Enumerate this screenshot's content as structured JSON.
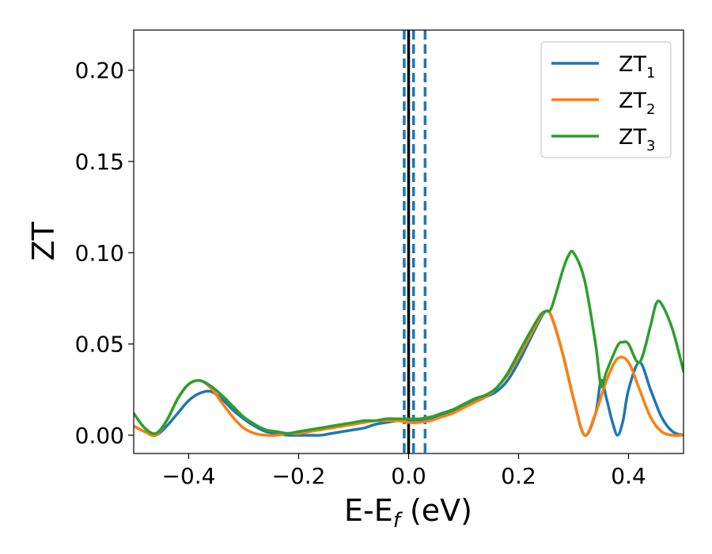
{
  "chart_data": {
    "type": "line",
    "xlabel": "E-E",
    "xlabel_sub": "f",
    "xlabel_unit": " (eV)",
    "ylabel": "ZT",
    "xlim": [
      -0.5,
      0.5
    ],
    "ylim": [
      -0.01,
      0.222
    ],
    "xticks": [
      -0.4,
      -0.2,
      0.0,
      0.2,
      0.4
    ],
    "xtick_labels": [
      "−0.4",
      "−0.2",
      "0.0",
      "0.2",
      "0.4"
    ],
    "yticks": [
      0.0,
      0.05,
      0.1,
      0.15,
      0.2
    ],
    "ytick_labels": [
      "0.00",
      "0.05",
      "0.10",
      "0.15",
      "0.20"
    ],
    "grid": false,
    "legend_position": "top-right",
    "vertical_lines": [
      {
        "x": 0.0,
        "color": "#000000",
        "style": "solid"
      },
      {
        "x": -0.008,
        "color": "#1f77b4",
        "style": "dashed"
      },
      {
        "x": 0.009,
        "color": "#1f77b4",
        "style": "dashed"
      },
      {
        "x": 0.03,
        "color": "#1f77b4",
        "style": "dashed"
      }
    ],
    "series": [
      {
        "name": "ZT",
        "name_sub": "1",
        "color": "#1f77b4",
        "x": [
          -0.5,
          -0.48,
          -0.46,
          -0.44,
          -0.42,
          -0.4,
          -0.38,
          -0.36,
          -0.34,
          -0.32,
          -0.3,
          -0.28,
          -0.26,
          -0.24,
          -0.22,
          -0.2,
          -0.18,
          -0.16,
          -0.14,
          -0.12,
          -0.1,
          -0.08,
          -0.06,
          -0.04,
          -0.02,
          0.0,
          0.02,
          0.04,
          0.06,
          0.08,
          0.1,
          0.12,
          0.14,
          0.16,
          0.18,
          0.2,
          0.22,
          0.24,
          0.25,
          0.26,
          0.28,
          0.3,
          0.32,
          0.34,
          0.35,
          0.36,
          0.37,
          0.38,
          0.39,
          0.4,
          0.42,
          0.44,
          0.46,
          0.48,
          0.5
        ],
        "values": [
          0.005,
          0.002,
          0.0,
          0.005,
          0.012,
          0.019,
          0.023,
          0.024,
          0.02,
          0.014,
          0.009,
          0.005,
          0.002,
          0.001,
          0.0,
          0.0,
          0.0,
          0.0,
          0.001,
          0.002,
          0.003,
          0.004,
          0.006,
          0.007,
          0.008,
          0.008,
          0.008,
          0.009,
          0.011,
          0.013,
          0.016,
          0.019,
          0.021,
          0.024,
          0.03,
          0.04,
          0.052,
          0.064,
          0.068,
          0.065,
          0.045,
          0.02,
          0.0,
          0.012,
          0.03,
          0.02,
          0.008,
          0.0,
          0.008,
          0.025,
          0.04,
          0.025,
          0.01,
          0.002,
          0.0
        ]
      },
      {
        "name": "ZT",
        "name_sub": "2",
        "color": "#ff7f0e",
        "x": [
          -0.5,
          -0.48,
          -0.46,
          -0.44,
          -0.42,
          -0.4,
          -0.38,
          -0.36,
          -0.34,
          -0.32,
          -0.3,
          -0.28,
          -0.26,
          -0.24,
          -0.22,
          -0.2,
          -0.18,
          -0.16,
          -0.14,
          -0.12,
          -0.1,
          -0.08,
          -0.06,
          -0.04,
          -0.02,
          0.0,
          0.02,
          0.04,
          0.06,
          0.08,
          0.1,
          0.12,
          0.14,
          0.16,
          0.18,
          0.2,
          0.22,
          0.24,
          0.25,
          0.26,
          0.28,
          0.3,
          0.32,
          0.34,
          0.36,
          0.38,
          0.4,
          0.42,
          0.44,
          0.46,
          0.48,
          0.5
        ],
        "values": [
          0.005,
          0.002,
          0.0,
          0.008,
          0.02,
          0.028,
          0.03,
          0.026,
          0.018,
          0.01,
          0.004,
          0.001,
          0.0,
          0.0,
          0.001,
          0.001,
          0.002,
          0.003,
          0.004,
          0.005,
          0.006,
          0.007,
          0.008,
          0.008,
          0.008,
          0.007,
          0.007,
          0.008,
          0.01,
          0.012,
          0.015,
          0.018,
          0.021,
          0.026,
          0.033,
          0.043,
          0.054,
          0.065,
          0.068,
          0.065,
          0.045,
          0.02,
          0.0,
          0.012,
          0.03,
          0.042,
          0.04,
          0.025,
          0.01,
          0.002,
          0.0,
          0.0
        ]
      },
      {
        "name": "ZT",
        "name_sub": "3",
        "color": "#2ca02c",
        "x": [
          -0.5,
          -0.48,
          -0.46,
          -0.44,
          -0.42,
          -0.4,
          -0.38,
          -0.36,
          -0.34,
          -0.32,
          -0.3,
          -0.28,
          -0.26,
          -0.24,
          -0.22,
          -0.2,
          -0.18,
          -0.16,
          -0.14,
          -0.12,
          -0.1,
          -0.08,
          -0.06,
          -0.04,
          -0.02,
          0.0,
          0.02,
          0.04,
          0.06,
          0.08,
          0.1,
          0.12,
          0.14,
          0.16,
          0.18,
          0.2,
          0.22,
          0.24,
          0.25,
          0.26,
          0.28,
          0.29,
          0.3,
          0.32,
          0.34,
          0.35,
          0.36,
          0.38,
          0.39,
          0.4,
          0.42,
          0.44,
          0.45,
          0.46,
          0.48,
          0.5
        ],
        "values": [
          0.012,
          0.004,
          0.001,
          0.008,
          0.02,
          0.028,
          0.03,
          0.027,
          0.022,
          0.016,
          0.01,
          0.006,
          0.003,
          0.002,
          0.001,
          0.002,
          0.003,
          0.004,
          0.005,
          0.006,
          0.007,
          0.008,
          0.008,
          0.009,
          0.009,
          0.009,
          0.009,
          0.01,
          0.012,
          0.014,
          0.017,
          0.02,
          0.022,
          0.026,
          0.034,
          0.045,
          0.056,
          0.066,
          0.068,
          0.07,
          0.09,
          0.098,
          0.1,
          0.085,
          0.05,
          0.027,
          0.035,
          0.049,
          0.051,
          0.05,
          0.04,
          0.06,
          0.072,
          0.072,
          0.058,
          0.035
        ]
      }
    ]
  }
}
